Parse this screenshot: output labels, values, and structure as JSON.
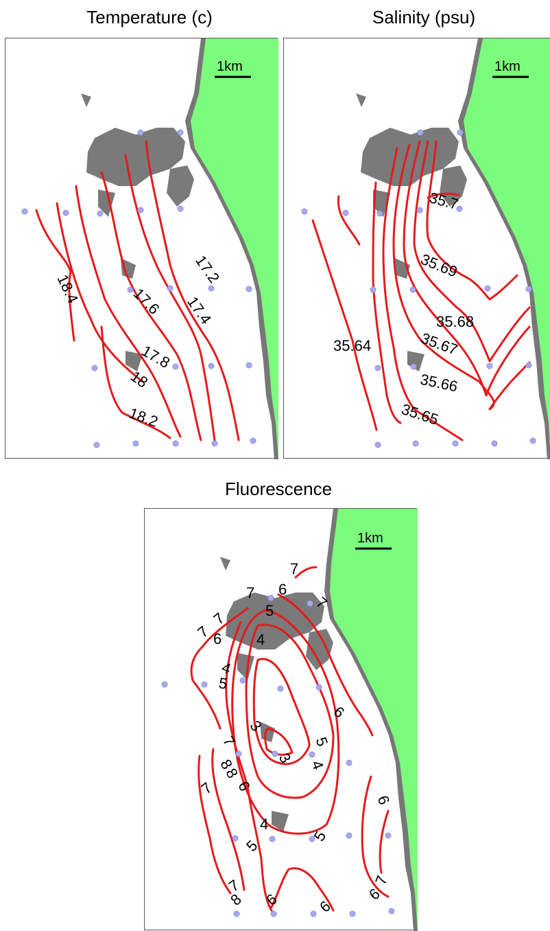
{
  "panels": {
    "temperature": {
      "title": "Temperature (c)",
      "scale": "1km",
      "labels": [
        "17.2",
        "17.4",
        "17.6",
        "17.8",
        "18",
        "18.2",
        "18.4"
      ]
    },
    "salinity": {
      "title": "Salinity (psu)",
      "scale": "1km",
      "labels": [
        "35.7",
        "35.69",
        "35.68",
        "35.67",
        "35.66",
        "35.65",
        "35.64"
      ]
    },
    "fluorescence": {
      "title": "Fluorescence",
      "scale": "1km",
      "labels": [
        "7",
        "6",
        "5",
        "4",
        "3",
        "8"
      ]
    }
  },
  "colors": {
    "land": "#7cfc7c",
    "reef": "#7a7a7a",
    "contour": "#e41a1c",
    "station": "#a9a9f0"
  }
}
